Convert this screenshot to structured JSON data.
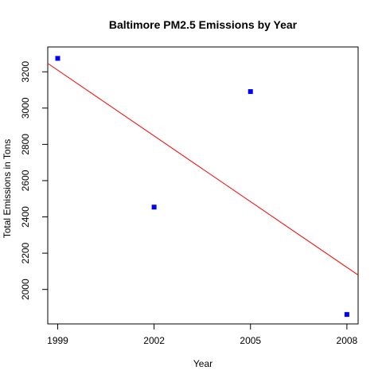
{
  "chart_data": {
    "type": "scatter",
    "title": "Baltimore PM2.5 Emissions by Year",
    "xlabel": "Year",
    "ylabel": "Total Emissions in Tons",
    "x_ticks": [
      "1999",
      "2002",
      "2005",
      "2008"
    ],
    "y_ticks": [
      "2000",
      "2200",
      "2400",
      "2600",
      "2800",
      "3000",
      "3200"
    ],
    "xlim": [
      1998.69,
      2008.35
    ],
    "ylim": [
      1810,
      3337
    ],
    "grid": false,
    "series": [
      {
        "points": [
          {
            "x": 1999,
            "y": 3274
          },
          {
            "x": 2002,
            "y": 2454
          },
          {
            "x": 2005,
            "y": 3091
          },
          {
            "x": 2008,
            "y": 1862
          }
        ],
        "color": "#0000ff",
        "marker": "square"
      }
    ],
    "trendline": {
      "type": "linear",
      "color": "#ff0000",
      "intercept_at_x": 1999,
      "intercept_y": 3209,
      "slope": -120.8
    }
  }
}
